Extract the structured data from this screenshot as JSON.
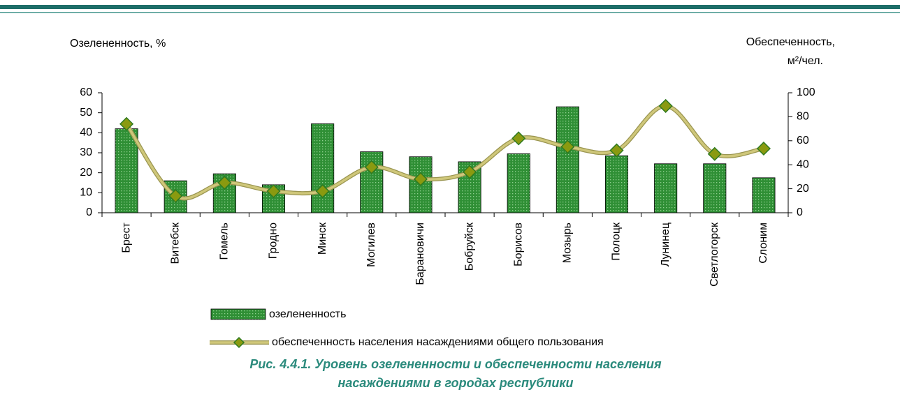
{
  "chart_data": {
    "type": "bar-line",
    "y_label": "Озелененность, %",
    "y2_label": [
      "Обеспеченность,",
      "м²/чел."
    ],
    "categories": [
      "Брест",
      "Витебск",
      "Гомель",
      "Гродно",
      "Минск",
      "Могилев",
      "Барановичи",
      "Бобруйск",
      "Борисов",
      "Мозырь",
      "Полоцк",
      "Лунинец",
      "Светлогорск",
      "Слоним"
    ],
    "series": [
      {
        "name": "озелененность",
        "type": "bar",
        "color": "#2f8f35",
        "values": [
          42,
          16,
          19.5,
          14,
          44.5,
          30.5,
          28,
          25.5,
          29.5,
          53,
          28.5,
          24.5,
          24.5,
          17.5
        ]
      },
      {
        "name": "обеспеченность населения насаждениями общего пользования",
        "type": "line",
        "axis": "y2",
        "color": "#cfc77a",
        "values": [
          74,
          14,
          25,
          18,
          18,
          38,
          28,
          34,
          62,
          55,
          52,
          89,
          49,
          53.5
        ]
      }
    ],
    "ylim": [
      0,
      60
    ],
    "yticks": [
      0,
      10,
      20,
      30,
      40,
      50,
      60
    ],
    "y2lim": [
      0,
      100
    ],
    "y2ticks": [
      0,
      20,
      40,
      60,
      80,
      100
    ],
    "caption": [
      "Рис. 4.4.1. Уровень озелененности и обеспеченности населения",
      "насаждениями в городах республики"
    ]
  }
}
